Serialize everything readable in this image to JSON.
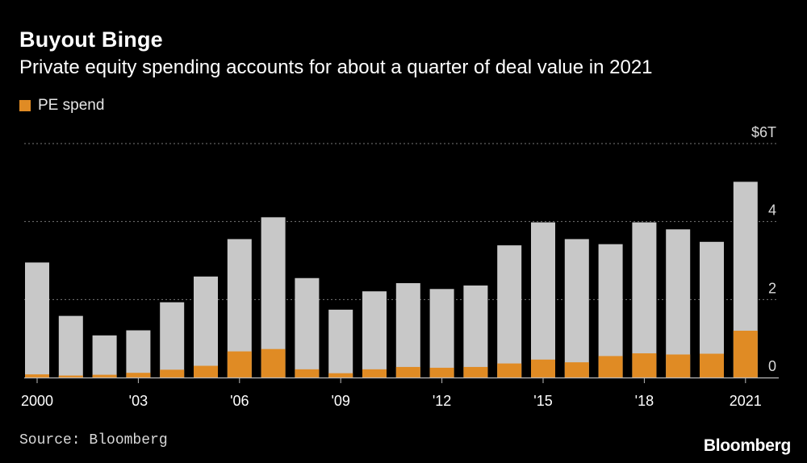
{
  "header": {
    "title": "Buyout Binge",
    "subtitle": "Private equity spending accounts for about a quarter of deal value in 2021"
  },
  "legend": {
    "label": "PE spend"
  },
  "footer": {
    "source": "Source: Bloomberg",
    "brand": "Bloomberg"
  },
  "colors": {
    "total": "#c8c8c8",
    "pe": "#e08b24",
    "grid": "#777777",
    "axis": "#bbbbbb"
  },
  "chart_data": {
    "type": "bar",
    "title": "Buyout Binge",
    "subtitle": "Private equity spending accounts for about a quarter of deal value in 2021",
    "unit": "$ trillions",
    "ylim": [
      0,
      6
    ],
    "yticks": [
      0,
      2,
      4,
      6
    ],
    "ytick_labels": [
      "0",
      "2",
      "4",
      "$6T"
    ],
    "categories": [
      "2000",
      "2001",
      "2002",
      "2003",
      "2004",
      "2005",
      "2006",
      "2007",
      "2008",
      "2009",
      "2010",
      "2011",
      "2012",
      "2013",
      "2014",
      "2015",
      "2016",
      "2017",
      "2018",
      "2019",
      "2020",
      "2021"
    ],
    "xtick_labels": [
      {
        "index": 0,
        "label": "2000"
      },
      {
        "index": 3,
        "label": "'03"
      },
      {
        "index": 6,
        "label": "'06"
      },
      {
        "index": 9,
        "label": "'09"
      },
      {
        "index": 12,
        "label": "'12"
      },
      {
        "index": 15,
        "label": "'15"
      },
      {
        "index": 18,
        "label": "'18"
      },
      {
        "index": 21,
        "label": "2021"
      }
    ],
    "series": [
      {
        "name": "Total deal value",
        "values": [
          2.95,
          1.58,
          1.08,
          1.21,
          1.93,
          2.59,
          3.55,
          4.11,
          2.55,
          1.74,
          2.21,
          2.42,
          2.27,
          2.36,
          3.39,
          3.98,
          3.55,
          3.42,
          3.98,
          3.8,
          3.48,
          5.02
        ]
      },
      {
        "name": "PE spend",
        "values": [
          0.08,
          0.05,
          0.07,
          0.12,
          0.2,
          0.3,
          0.67,
          0.73,
          0.21,
          0.11,
          0.21,
          0.27,
          0.25,
          0.27,
          0.36,
          0.46,
          0.39,
          0.55,
          0.62,
          0.59,
          0.61,
          1.2
        ]
      }
    ],
    "grid": true,
    "legend_position": "top-left"
  }
}
